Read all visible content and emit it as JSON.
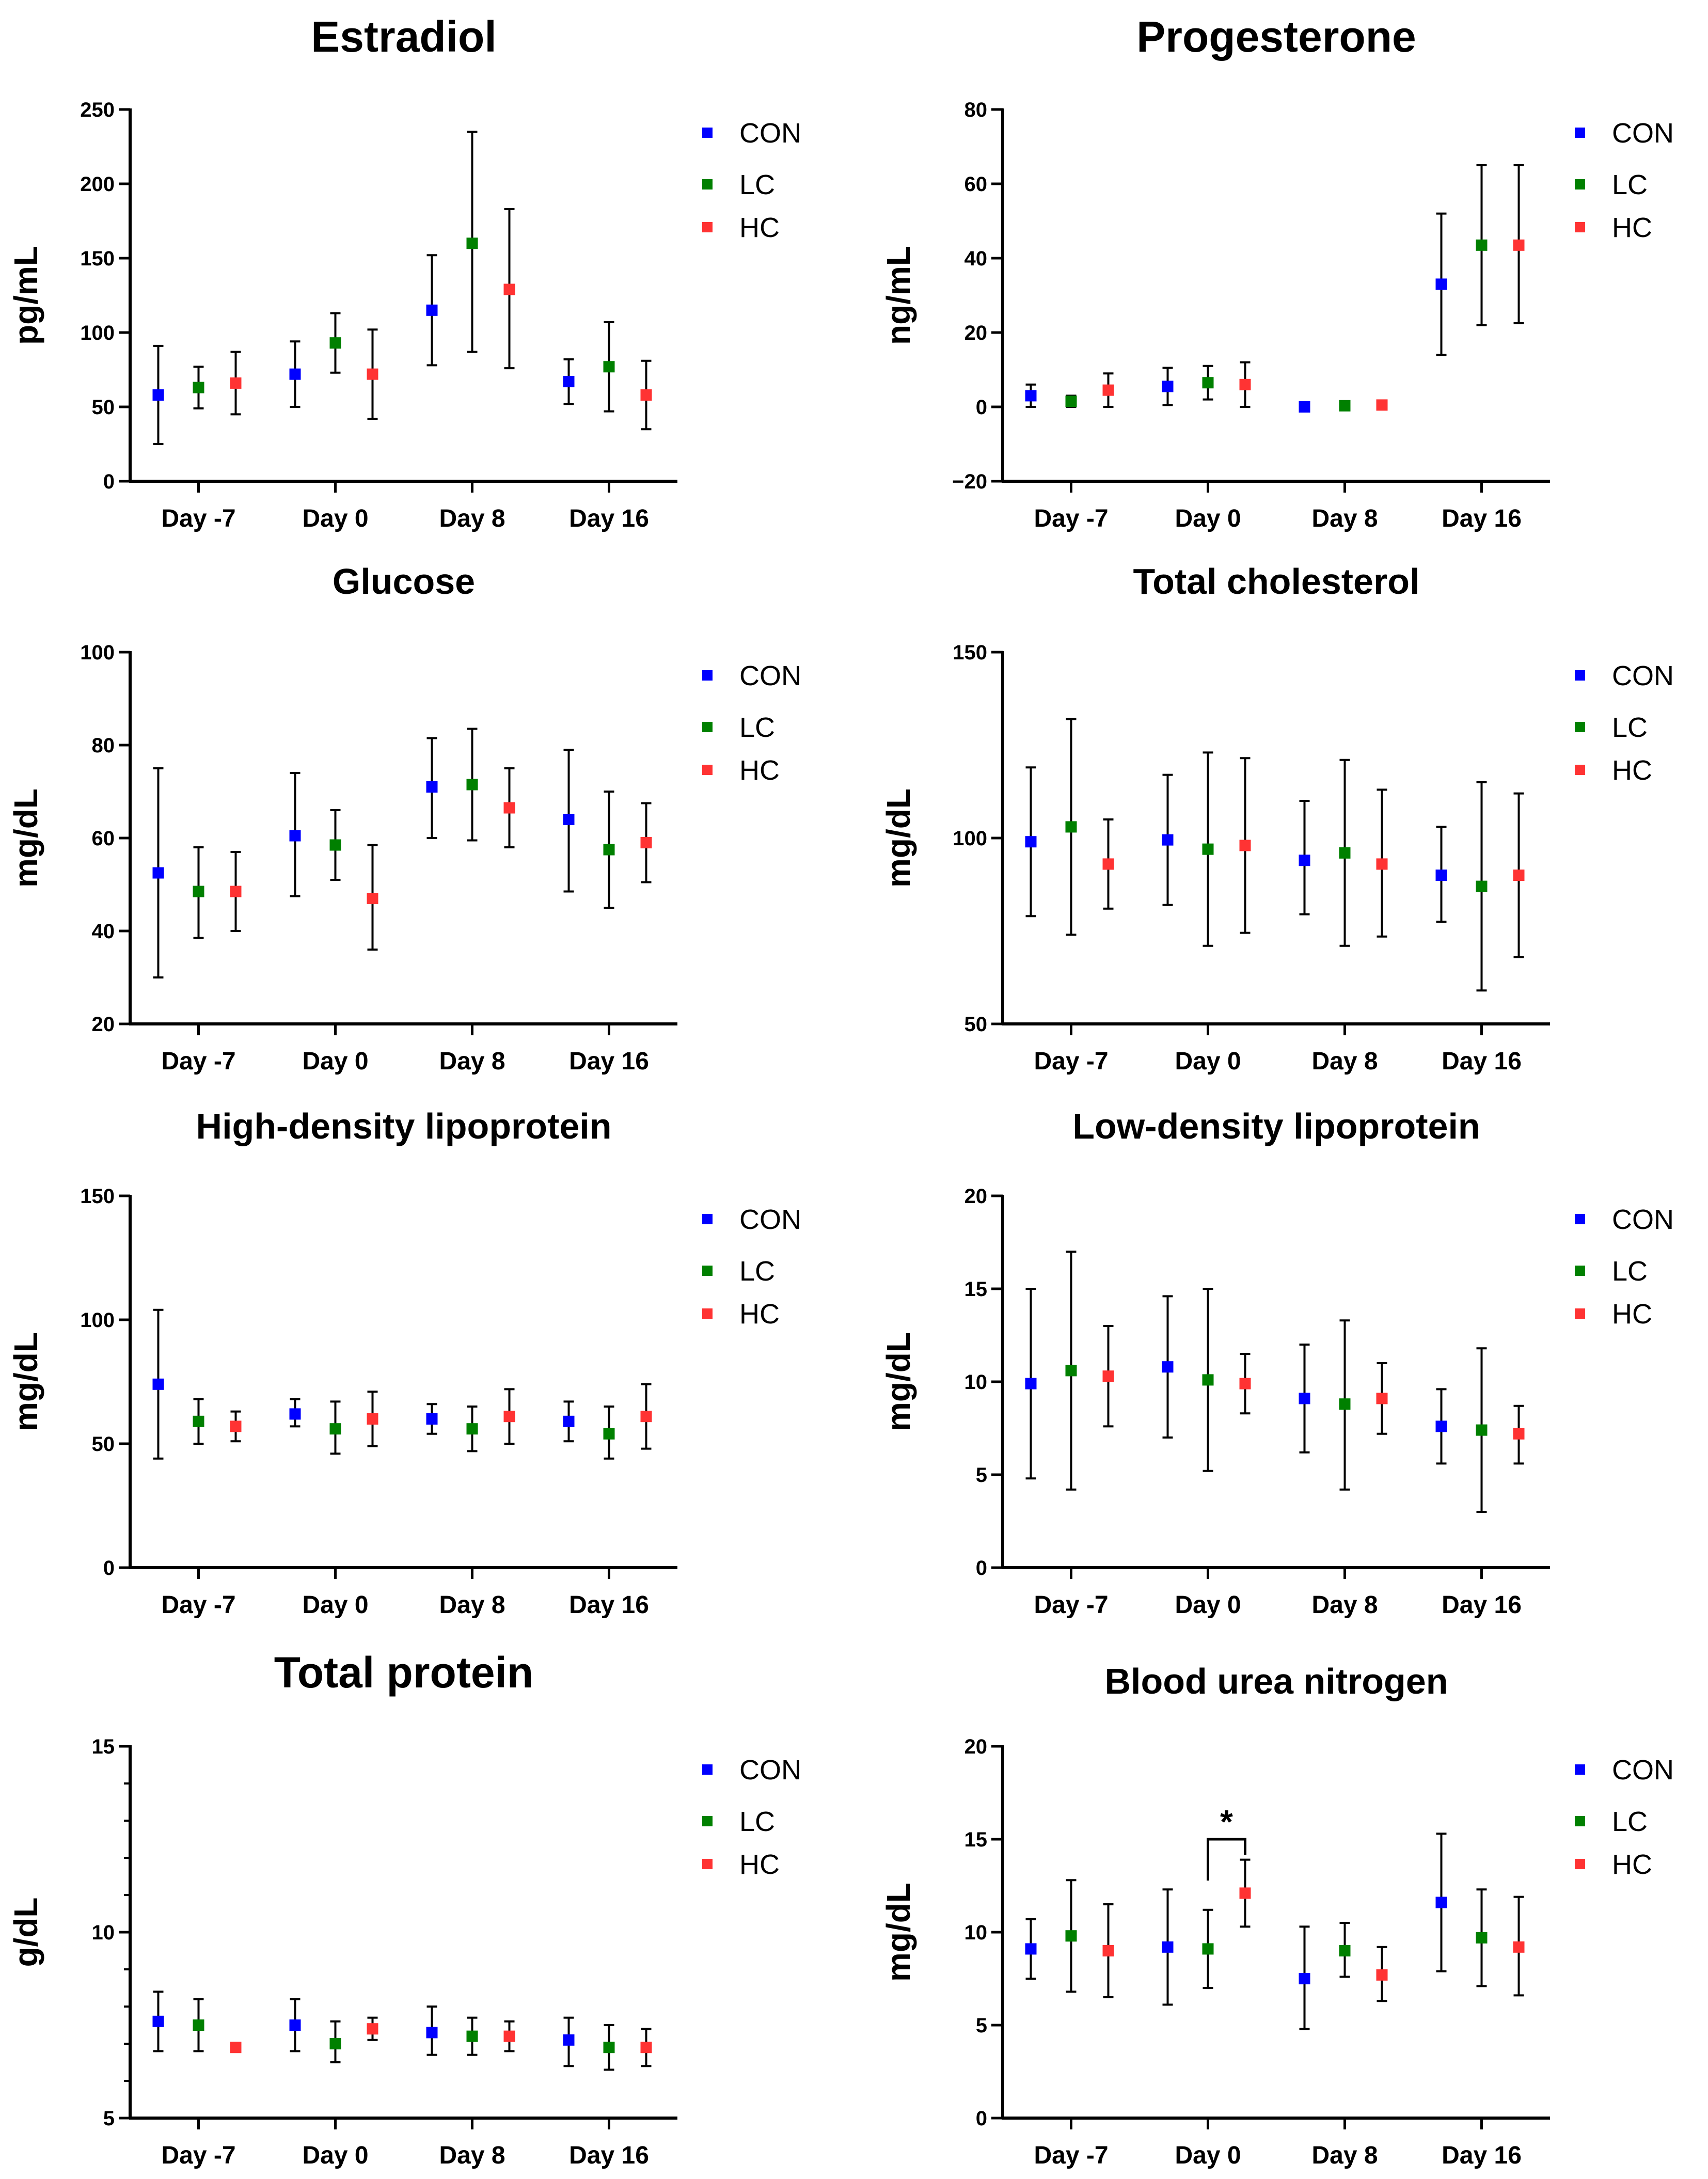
{
  "colors": {
    "CON": "#0000ff",
    "LC": "#008000",
    "HC": "#ff3333",
    "axis": "#000000"
  },
  "chart_data": [
    {
      "type": "scatter",
      "title": "Estradiol",
      "ylabel": "pg/mL",
      "xlabel": "",
      "categories": [
        "Day -7",
        "Day 0",
        "Day 8",
        "Day 16"
      ],
      "ylim": [
        0,
        250
      ],
      "yticks": [
        0,
        50,
        100,
        150,
        200,
        250
      ],
      "minor_ticks": false,
      "legend": [
        "CON",
        "LC",
        "HC"
      ],
      "series": [
        {
          "name": "CON",
          "mean": [
            58,
            72,
            115,
            67
          ],
          "lower": [
            25,
            50,
            78,
            52
          ],
          "upper": [
            91,
            94,
            152,
            82
          ]
        },
        {
          "name": "LC",
          "mean": [
            63,
            93,
            160,
            77
          ],
          "lower": [
            49,
            73,
            87,
            47
          ],
          "upper": [
            77,
            113,
            235,
            107
          ]
        },
        {
          "name": "HC",
          "mean": [
            66,
            72,
            129,
            58
          ],
          "lower": [
            45,
            42,
            76,
            35
          ],
          "upper": [
            87,
            102,
            183,
            81
          ]
        }
      ]
    },
    {
      "type": "scatter",
      "title": "Progesterone",
      "ylabel": "ng/mL",
      "xlabel": "",
      "categories": [
        "Day -7",
        "Day 0",
        "Day 8",
        "Day 16"
      ],
      "ylim": [
        -20,
        80
      ],
      "yticks": [
        -20,
        0,
        20,
        40,
        60,
        80
      ],
      "minor_ticks": false,
      "legend": [
        "CON",
        "LC",
        "HC"
      ],
      "series": [
        {
          "name": "CON",
          "mean": [
            3,
            5.5,
            0,
            33
          ],
          "lower": [
            0,
            0.5,
            0,
            14
          ],
          "upper": [
            6,
            10.5,
            0,
            52
          ]
        },
        {
          "name": "LC",
          "mean": [
            1.5,
            6.5,
            0.3,
            43.5
          ],
          "lower": [
            0,
            2,
            0,
            22
          ],
          "upper": [
            3,
            11,
            0.6,
            65
          ]
        },
        {
          "name": "HC",
          "mean": [
            4.5,
            6,
            0.5,
            43.5
          ],
          "lower": [
            0,
            0,
            0,
            22.5
          ],
          "upper": [
            9,
            12,
            1,
            65
          ]
        }
      ]
    },
    {
      "type": "scatter",
      "title": "Glucose",
      "ylabel": "mg/dL",
      "xlabel": "",
      "categories": [
        "Day -7",
        "Day 0",
        "Day 8",
        "Day 16"
      ],
      "ylim": [
        20,
        100
      ],
      "yticks": [
        20,
        40,
        60,
        80,
        100
      ],
      "minor_ticks": false,
      "legend": [
        "CON",
        "LC",
        "HC"
      ],
      "series": [
        {
          "name": "CON",
          "mean": [
            52.5,
            60.5,
            71,
            64
          ],
          "lower": [
            30,
            47.5,
            60,
            48.5
          ],
          "upper": [
            75,
            74,
            81.5,
            79
          ]
        },
        {
          "name": "LC",
          "mean": [
            48.5,
            58.5,
            71.5,
            57.5
          ],
          "lower": [
            38.5,
            51,
            59.5,
            45
          ],
          "upper": [
            58,
            66,
            83.5,
            70
          ]
        },
        {
          "name": "HC",
          "mean": [
            48.5,
            47,
            66.5,
            59
          ],
          "lower": [
            40,
            36,
            58,
            50.5
          ],
          "upper": [
            57,
            58.5,
            75,
            67.5
          ]
        }
      ]
    },
    {
      "type": "scatter",
      "title": "Total cholesterol",
      "ylabel": "mg/dL",
      "xlabel": "",
      "categories": [
        "Day -7",
        "Day 0",
        "Day 8",
        "Day 16"
      ],
      "ylim": [
        50,
        150
      ],
      "yticks": [
        50,
        100,
        150
      ],
      "minor_ticks": false,
      "legend": [
        "CON",
        "LC",
        "HC"
      ],
      "series": [
        {
          "name": "CON",
          "mean": [
            99,
            99.5,
            94,
            90
          ],
          "lower": [
            79,
            82,
            79.5,
            77.5
          ],
          "upper": [
            119,
            117,
            110,
            103
          ]
        },
        {
          "name": "LC",
          "mean": [
            103,
            97,
            96,
            87
          ],
          "lower": [
            74,
            71,
            71,
            59
          ],
          "upper": [
            132,
            123,
            121,
            115
          ]
        },
        {
          "name": "HC",
          "mean": [
            93,
            98,
            93,
            90
          ],
          "lower": [
            81,
            74.5,
            73.5,
            68
          ],
          "upper": [
            105,
            121.5,
            113,
            112
          ]
        }
      ]
    },
    {
      "type": "scatter",
      "title": "High-density lipoprotein",
      "ylabel": "mg/dL",
      "xlabel": "",
      "categories": [
        "Day -7",
        "Day 0",
        "Day 8",
        "Day 16"
      ],
      "ylim": [
        0,
        150
      ],
      "yticks": [
        0,
        50,
        100,
        150
      ],
      "minor_ticks": false,
      "legend": [
        "CON",
        "LC",
        "HC"
      ],
      "series": [
        {
          "name": "CON",
          "mean": [
            74,
            62,
            60,
            59
          ],
          "lower": [
            44,
            57,
            54,
            51
          ],
          "upper": [
            104,
            68,
            66,
            67
          ]
        },
        {
          "name": "LC",
          "mean": [
            59,
            56,
            56,
            54
          ],
          "lower": [
            50,
            46,
            47,
            44
          ],
          "upper": [
            68,
            67,
            65,
            65
          ]
        },
        {
          "name": "HC",
          "mean": [
            57,
            60,
            61,
            61
          ],
          "lower": [
            51,
            49,
            50,
            48
          ],
          "upper": [
            63,
            71,
            72,
            74
          ]
        }
      ]
    },
    {
      "type": "scatter",
      "title": "Low-density lipoprotein",
      "ylabel": "mg/dL",
      "xlabel": "",
      "categories": [
        "Day -7",
        "Day 0",
        "Day 8",
        "Day 16"
      ],
      "ylim": [
        0,
        20
      ],
      "yticks": [
        0,
        5,
        10,
        15,
        20
      ],
      "minor_ticks": false,
      "legend": [
        "CON",
        "LC",
        "HC"
      ],
      "series": [
        {
          "name": "CON",
          "mean": [
            9.9,
            10.8,
            9.1,
            7.6
          ],
          "lower": [
            4.8,
            7,
            6.2,
            5.6
          ],
          "upper": [
            15,
            14.6,
            12,
            9.6
          ]
        },
        {
          "name": "LC",
          "mean": [
            10.6,
            10.1,
            8.8,
            7.4
          ],
          "lower": [
            4.2,
            5.2,
            4.2,
            3
          ],
          "upper": [
            17,
            15,
            13.3,
            11.8
          ]
        },
        {
          "name": "HC",
          "mean": [
            10.3,
            9.9,
            9.1,
            7.2
          ],
          "lower": [
            7.6,
            8.3,
            7.2,
            5.6
          ],
          "upper": [
            13,
            11.5,
            11,
            8.7
          ]
        }
      ]
    },
    {
      "type": "scatter",
      "title": "Total protein",
      "ylabel": "g/dL",
      "xlabel": "",
      "categories": [
        "Day -7",
        "Day 0",
        "Day 8",
        "Day 16"
      ],
      "ylim": [
        5,
        15
      ],
      "yticks": [
        5,
        10,
        15
      ],
      "minor_ticks": true,
      "legend": [
        "CON",
        "LC",
        "HC"
      ],
      "series": [
        {
          "name": "CON",
          "mean": [
            7.6,
            7.5,
            7.3,
            7.1
          ],
          "lower": [
            6.8,
            6.8,
            6.7,
            6.4
          ],
          "upper": [
            8.4,
            8.2,
            8.0,
            7.7
          ]
        },
        {
          "name": "LC",
          "mean": [
            7.5,
            7.0,
            7.2,
            6.9
          ],
          "lower": [
            6.8,
            6.5,
            6.7,
            6.3
          ],
          "upper": [
            8.2,
            7.6,
            7.7,
            7.5
          ]
        },
        {
          "name": "HC",
          "mean": [
            6.9,
            7.4,
            7.2,
            6.9
          ],
          "lower": [
            6.8,
            7.1,
            6.8,
            6.4
          ],
          "upper": [
            7.0,
            7.7,
            7.6,
            7.4
          ]
        }
      ]
    },
    {
      "type": "scatter",
      "title": "Blood urea nitrogen",
      "ylabel": "mg/dL",
      "xlabel": "",
      "categories": [
        "Day -7",
        "Day 0",
        "Day 8",
        "Day 16"
      ],
      "ylim": [
        0,
        20
      ],
      "yticks": [
        0,
        5,
        10,
        15,
        20
      ],
      "minor_ticks": false,
      "legend": [
        "CON",
        "LC",
        "HC"
      ],
      "series": [
        {
          "name": "CON",
          "mean": [
            9.1,
            9.2,
            7.5,
            11.6
          ],
          "lower": [
            7.5,
            6.1,
            4.8,
            7.9
          ],
          "upper": [
            10.7,
            12.3,
            10.3,
            15.3
          ]
        },
        {
          "name": "LC",
          "mean": [
            9.8,
            9.1,
            9.0,
            9.7
          ],
          "lower": [
            6.8,
            7.0,
            7.6,
            7.1
          ],
          "upper": [
            12.8,
            11.2,
            10.5,
            12.3
          ]
        },
        {
          "name": "HC",
          "mean": [
            9.0,
            12.1,
            7.7,
            9.2
          ],
          "lower": [
            6.5,
            10.3,
            6.3,
            6.6
          ],
          "upper": [
            11.5,
            13.9,
            9.2,
            11.9
          ]
        }
      ],
      "annotations": [
        {
          "text": "*",
          "category": "Day 0",
          "between": [
            "LC",
            "HC"
          ],
          "y": 15
        }
      ]
    }
  ]
}
